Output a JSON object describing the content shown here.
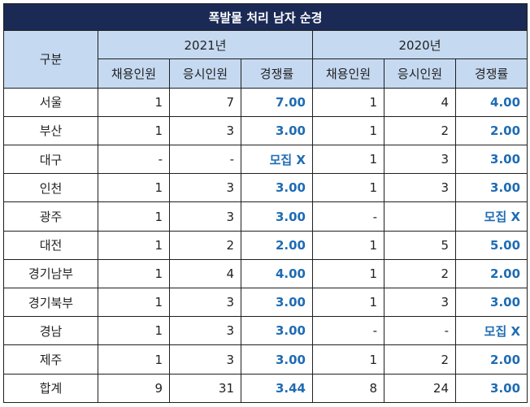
{
  "title": "폭발물 처리 남자 순경",
  "header": {
    "category": "구분",
    "years": [
      "2021년",
      "2020년"
    ],
    "subcolumns": [
      "채용인원",
      "응시인원",
      "경쟁률"
    ]
  },
  "rows": [
    {
      "name": "서울",
      "y2021": {
        "hire": "1",
        "apply": "7",
        "rate": "7.00"
      },
      "y2020": {
        "hire": "1",
        "apply": "4",
        "rate": "4.00"
      }
    },
    {
      "name": "부산",
      "y2021": {
        "hire": "1",
        "apply": "3",
        "rate": "3.00"
      },
      "y2020": {
        "hire": "1",
        "apply": "2",
        "rate": "2.00"
      }
    },
    {
      "name": "대구",
      "y2021": {
        "hire": "-",
        "apply": "-",
        "rate": "모집 X"
      },
      "y2020": {
        "hire": "1",
        "apply": "3",
        "rate": "3.00"
      }
    },
    {
      "name": "인천",
      "y2021": {
        "hire": "1",
        "apply": "3",
        "rate": "3.00"
      },
      "y2020": {
        "hire": "1",
        "apply": "3",
        "rate": "3.00"
      }
    },
    {
      "name": "광주",
      "y2021": {
        "hire": "1",
        "apply": "3",
        "rate": "3.00"
      },
      "y2020": {
        "hire": "-",
        "apply": "",
        "rate": "모집 X"
      }
    },
    {
      "name": "대전",
      "y2021": {
        "hire": "1",
        "apply": "2",
        "rate": "2.00"
      },
      "y2020": {
        "hire": "1",
        "apply": "5",
        "rate": "5.00"
      }
    },
    {
      "name": "경기남부",
      "y2021": {
        "hire": "1",
        "apply": "4",
        "rate": "4.00"
      },
      "y2020": {
        "hire": "1",
        "apply": "2",
        "rate": "2.00"
      }
    },
    {
      "name": "경기북부",
      "y2021": {
        "hire": "1",
        "apply": "3",
        "rate": "3.00"
      },
      "y2020": {
        "hire": "1",
        "apply": "3",
        "rate": "3.00"
      }
    },
    {
      "name": "경남",
      "y2021": {
        "hire": "1",
        "apply": "3",
        "rate": "3.00"
      },
      "y2020": {
        "hire": "-",
        "apply": "-",
        "rate": "모집 X"
      }
    },
    {
      "name": "제주",
      "y2021": {
        "hire": "1",
        "apply": "3",
        "rate": "3.00"
      },
      "y2020": {
        "hire": "1",
        "apply": "2",
        "rate": "2.00"
      }
    },
    {
      "name": "합계",
      "y2021": {
        "hire": "9",
        "apply": "31",
        "rate": "3.44"
      },
      "y2020": {
        "hire": "8",
        "apply": "24",
        "rate": "3.00"
      }
    }
  ],
  "colors": {
    "title_bg": "#1b2a55",
    "header_bg": "#c5d9f1",
    "rate_text": "#1f6cb4"
  }
}
